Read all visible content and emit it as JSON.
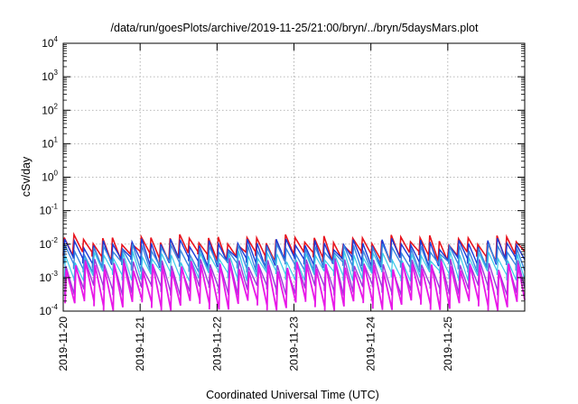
{
  "chart_data": {
    "type": "line",
    "title": "/data/run/goesPlots/archive/2019-11-25/21:00/bryn/../bryn/5daysMars.plot",
    "xlabel": "Coordinated Universal Time (UTC)",
    "ylabel": "cSv/day",
    "x_tick_labels": [
      "2019-11-20",
      "2019-11-21",
      "2019-11-22",
      "2019-11-23",
      "2019-11-24",
      "2019-11-25"
    ],
    "xlim": [
      "2019-11-20 00:00",
      "2019-11-25 23:59"
    ],
    "ylim": [
      0.0001,
      10000
    ],
    "y_scale": "log",
    "y_tick_labels": [
      {
        "base": "10",
        "exp": "4"
      },
      {
        "base": "10",
        "exp": "3"
      },
      {
        "base": "10",
        "exp": "2"
      },
      {
        "base": "10",
        "exp": "1"
      },
      {
        "base": "10",
        "exp": "0"
      },
      {
        "base": "10",
        "exp": "-1"
      },
      {
        "base": "10",
        "exp": "-2"
      },
      {
        "base": "10",
        "exp": "-3"
      },
      {
        "base": "10",
        "exp": "-4"
      }
    ],
    "grid": true,
    "sawtooth_period_hours": 3,
    "series": [
      {
        "color": "#e8141e",
        "peak": 0.014,
        "trough": 0.0045,
        "width": 1.6
      },
      {
        "color": "#1a3ad8",
        "peak": 0.011,
        "trough": 0.003,
        "width": 1.4
      },
      {
        "color": "#3a86e0",
        "peak": 0.0075,
        "trough": 0.0022,
        "width": 1.4
      },
      {
        "color": "#3ac8e8",
        "peak": 0.0045,
        "trough": 0.0012,
        "width": 1.2
      },
      {
        "color": "#9a3ad8",
        "peak": 0.0028,
        "trough": 0.00045,
        "width": 1.4
      },
      {
        "color": "#e818e8",
        "peak": 0.0022,
        "trough": 0.00016,
        "width": 1.8
      }
    ]
  }
}
